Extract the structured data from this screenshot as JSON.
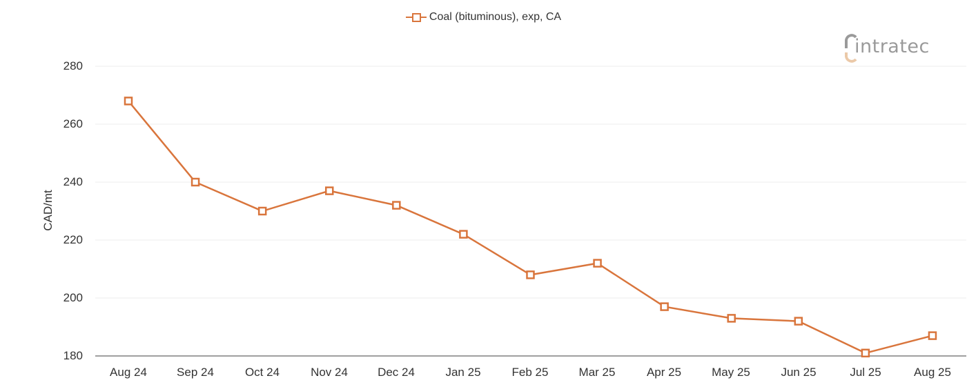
{
  "legend": {
    "label": "Coal (bituminous), exp, CA",
    "color": "#D9753C"
  },
  "logo": {
    "text": "intratec"
  },
  "axes": {
    "ylabel": "CAD/mt",
    "yticks": [
      "280",
      "260",
      "240",
      "220",
      "200",
      "180"
    ],
    "xticks": [
      "Aug 24",
      "Sep 24",
      "Oct 24",
      "Nov 24",
      "Dec 24",
      "Jan 25",
      "Feb 25",
      "Mar 25",
      "Apr 25",
      "May 25",
      "Jun 25",
      "Jul 25",
      "Aug 25"
    ]
  },
  "chart_data": {
    "type": "line",
    "title": "",
    "xlabel": "",
    "ylabel": "CAD/mt",
    "ylim": [
      180,
      280
    ],
    "yticks": [
      180,
      200,
      220,
      240,
      260,
      280
    ],
    "grid": true,
    "legend_position": "top-center",
    "categories": [
      "Aug 24",
      "Sep 24",
      "Oct 24",
      "Nov 24",
      "Dec 24",
      "Jan 25",
      "Feb 25",
      "Mar 25",
      "Apr 25",
      "May 25",
      "Jun 25",
      "Jul 25",
      "Aug 25"
    ],
    "series": [
      {
        "name": "Coal (bituminous), exp, CA",
        "color": "#D9753C",
        "marker": "open-square",
        "values": [
          268,
          240,
          230,
          237,
          232,
          222,
          208,
          212,
          197,
          193,
          192,
          181,
          187
        ]
      }
    ]
  }
}
